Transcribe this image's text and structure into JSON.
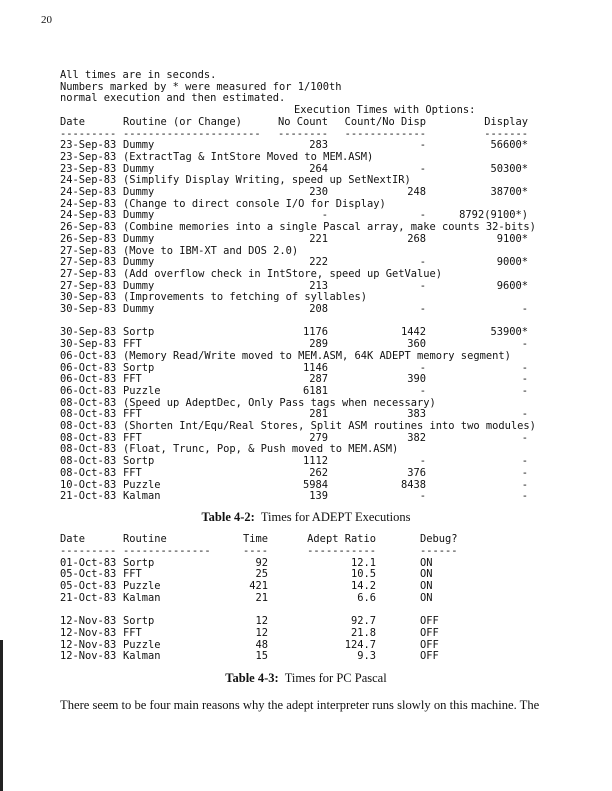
{
  "page_number": "20",
  "intro_lines": [
    "All times are in seconds.",
    "Numbers marked by * were measured for 1/100th",
    "normal execution and then estimated."
  ],
  "table_4_2": {
    "group_header": "Execution Times with Options:",
    "headers": {
      "date": "Date",
      "routine": "Routine (or Change)",
      "no_count": "No Count",
      "count_no_disp": "Count/No Disp",
      "display": "Display"
    },
    "dashes": {
      "date": "---------",
      "routine": "----------------------",
      "no_count": "--------",
      "count_no_disp": "-------------",
      "display": "-------"
    },
    "sections": [
      [
        {
          "date": "23-Sep-83",
          "routine": "Dummy",
          "no_count": "283",
          "count_no_disp": "-",
          "display": "56600*"
        },
        {
          "date": "23-Sep-83",
          "change": "(ExtractTag & IntStore Moved to MEM.ASM)"
        },
        {
          "date": "23-Sep-83",
          "routine": "Dummy",
          "no_count": "264",
          "count_no_disp": "-",
          "display": "50300*"
        },
        {
          "date": "24-Sep-83",
          "change": "(Simplify Display Writing, speed up SetNextIR)"
        },
        {
          "date": "24-Sep-83",
          "routine": "Dummy",
          "no_count": "230",
          "count_no_disp": "248",
          "display": "38700*"
        },
        {
          "date": "24-Sep-83",
          "change": "(Change to direct console I/O for Display)"
        },
        {
          "date": "24-Sep-83",
          "routine": "Dummy",
          "no_count": "-",
          "count_no_disp": "-",
          "display": "8792(9100*)"
        },
        {
          "date": "26-Sep-83",
          "change": "(Combine memories into a single Pascal array, make counts 32-bits)"
        },
        {
          "date": "26-Sep-83",
          "routine": "Dummy",
          "no_count": "221",
          "count_no_disp": "268",
          "display": "9100*"
        },
        {
          "date": "27-Sep-83",
          "change": "(Move to IBM-XT and DOS 2.0)"
        },
        {
          "date": "27-Sep-83",
          "routine": "Dummy",
          "no_count": "222",
          "count_no_disp": "-",
          "display": "9000*"
        },
        {
          "date": "27-Sep-83",
          "change": "(Add overflow check in IntStore, speed up GetValue)"
        },
        {
          "date": "27-Sep-83",
          "routine": "Dummy",
          "no_count": "213",
          "count_no_disp": "-",
          "display": "9600*"
        },
        {
          "date": "30-Sep-83",
          "change": "(Improvements to fetching of syllables)"
        },
        {
          "date": "30-Sep-83",
          "routine": "Dummy",
          "no_count": "208",
          "count_no_disp": "-",
          "display": "-"
        }
      ],
      [
        {
          "date": "30-Sep-83",
          "routine": "Sortp",
          "no_count": "1176",
          "count_no_disp": "1442",
          "display": "53900*"
        },
        {
          "date": "30-Sep-83",
          "routine": "FFT",
          "no_count": "289",
          "count_no_disp": "360",
          "display": "-"
        },
        {
          "date": "06-Oct-83",
          "change": "(Memory Read/Write moved to MEM.ASM, 64K ADEPT memory segment)"
        },
        {
          "date": "06-Oct-83",
          "routine": "Sortp",
          "no_count": "1146",
          "count_no_disp": "-",
          "display": "-"
        },
        {
          "date": "06-Oct-83",
          "routine": "FFT",
          "no_count": "287",
          "count_no_disp": "390",
          "display": "-"
        },
        {
          "date": "06-Oct-83",
          "routine": "Puzzle",
          "no_count": "6181",
          "count_no_disp": "-",
          "display": "-"
        },
        {
          "date": "08-Oct-83",
          "change": "(Speed up AdeptDec, Only Pass tags when necessary)"
        },
        {
          "date": "08-Oct-83",
          "routine": "FFT",
          "no_count": "281",
          "count_no_disp": "383",
          "display": "-"
        },
        {
          "date": "08-Oct-83",
          "change": "(Shorten Int/Equ/Real Stores, Split ASM routines into two modules)"
        },
        {
          "date": "08-Oct-83",
          "routine": "FFT",
          "no_count": "279",
          "count_no_disp": "382",
          "display": "-"
        },
        {
          "date": "08-Oct-83",
          "change": "(Float, Trunc, Pop, & Push moved to MEM.ASM)"
        },
        {
          "date": "08-Oct-83",
          "routine": "Sortp",
          "no_count": "1112",
          "count_no_disp": "-",
          "display": "-"
        },
        {
          "date": "08-Oct-83",
          "routine": "FFT",
          "no_count": "262",
          "count_no_disp": "376",
          "display": "-"
        },
        {
          "date": "10-Oct-83",
          "routine": "Puzzle",
          "no_count": "5984",
          "count_no_disp": "8438",
          "display": "-"
        },
        {
          "date": "21-Oct-83",
          "routine": "Kalman",
          "no_count": "139",
          "count_no_disp": "-",
          "display": "-"
        }
      ]
    ],
    "caption_label": "Table 4-2:",
    "caption_text": "Times for ADEPT Executions"
  },
  "table_4_3": {
    "headers": {
      "date": "Date",
      "routine": "Routine",
      "time": "Time",
      "ratio": "Adept Ratio",
      "debug": "Debug?"
    },
    "dashes": {
      "date": "---------",
      "routine": "--------------",
      "time": "----",
      "ratio": "-----------",
      "debug": "------"
    },
    "sections": [
      [
        {
          "date": "01-Oct-83",
          "routine": "Sortp",
          "time": "92",
          "ratio": "12.1",
          "debug": "ON"
        },
        {
          "date": "05-Oct-83",
          "routine": "FFT",
          "time": "25",
          "ratio": "10.5",
          "debug": "ON"
        },
        {
          "date": "05-Oct-83",
          "routine": "Puzzle",
          "time": "421",
          "ratio": "14.2",
          "debug": "ON"
        },
        {
          "date": "21-Oct-83",
          "routine": "Kalman",
          "time": "21",
          "ratio": "6.6",
          "debug": "ON"
        }
      ],
      [
        {
          "date": "12-Nov-83",
          "routine": "Sortp",
          "time": "12",
          "ratio": "92.7",
          "debug": "OFF"
        },
        {
          "date": "12-Nov-83",
          "routine": "FFT",
          "time": "12",
          "ratio": "21.8",
          "debug": "OFF"
        },
        {
          "date": "12-Nov-83",
          "routine": "Puzzle",
          "time": "48",
          "ratio": "124.7",
          "debug": "OFF"
        },
        {
          "date": "12-Nov-83",
          "routine": "Kalman",
          "time": "15",
          "ratio": "9.3",
          "debug": "OFF"
        }
      ]
    ],
    "caption_label": "Table 4-3:",
    "caption_text": "Times for PC Pascal"
  },
  "paragraph": "There seem to be four main reasons why the adept interpreter runs slowly on this machine.  The"
}
